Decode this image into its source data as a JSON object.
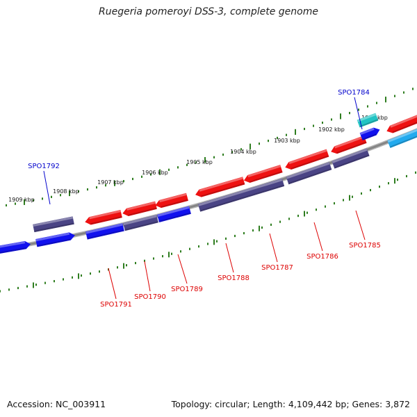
{
  "title": "Ruegeria pomeroyi DSS-3, complete genome",
  "footer": {
    "accession": "Accession: NC_003911",
    "stats": "Topology: circular; Length: 4,109,442 bp; Genes: 3,872"
  },
  "colors": {
    "backbone": "#858585",
    "ticks": "#2e7d1f",
    "label_red": "#dd0000",
    "label_blue": "#0000cc",
    "red": "#ee1111",
    "blue": "#1111ee",
    "slate": "#4a4485",
    "teal": "#22c4c4",
    "sky": "#22aaee"
  },
  "tick_labels": [
    "1901 kbp",
    "1902 kbp",
    "1903 kbp",
    "1904 kbp",
    "1905 kbp",
    "1906 kbp",
    "1907 kbp",
    "1908 kbp",
    "1909 kbp"
  ],
  "gene_labels": [
    {
      "name": "SPO1784",
      "color": "blue"
    },
    {
      "name": "SPO1785",
      "color": "red"
    },
    {
      "name": "SPO1786",
      "color": "red"
    },
    {
      "name": "SPO1787",
      "color": "red"
    },
    {
      "name": "SPO1788",
      "color": "red"
    },
    {
      "name": "SPO1789",
      "color": "red"
    },
    {
      "name": "SPO1790",
      "color": "red"
    },
    {
      "name": "SPO1791",
      "color": "red"
    },
    {
      "name": "SPO1792",
      "color": "blue"
    }
  ]
}
